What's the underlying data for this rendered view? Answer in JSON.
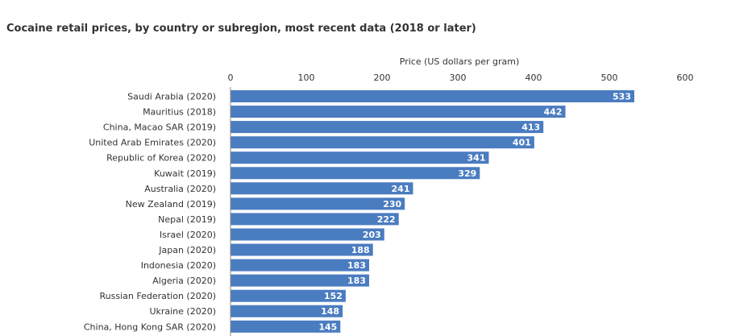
{
  "chart_data": {
    "type": "bar",
    "orientation": "horizontal",
    "title": "Cocaine retail prices, by country or subregion, most recent data (2018 or later)",
    "xlabel": "Price (US dollars per gram)",
    "ylabel": "",
    "xlim": [
      0,
      600
    ],
    "xticks": [
      0,
      100,
      200,
      300,
      400,
      500,
      600
    ],
    "categories": [
      "Saudi Arabia (2020)",
      "Mauritius (2018)",
      "China, Macao SAR (2019)",
      "United Arab Emirates (2020)",
      "Republic of Korea (2020)",
      "Kuwait (2019)",
      "Australia (2020)",
      "New Zealand (2019)",
      "Nepal (2019)",
      "Israel (2020)",
      "Japan (2020)",
      "Indonesia (2020)",
      "Algeria (2020)",
      "Russian Federation (2020)",
      "Ukraine (2020)",
      "China, Hong Kong SAR (2020)"
    ],
    "values": [
      533,
      442,
      413,
      401,
      341,
      329,
      241,
      230,
      222,
      203,
      188,
      183,
      183,
      152,
      148,
      145
    ],
    "bar_color": "#4a7cc0",
    "axis_position": "top",
    "grid": false,
    "legend": "none"
  }
}
